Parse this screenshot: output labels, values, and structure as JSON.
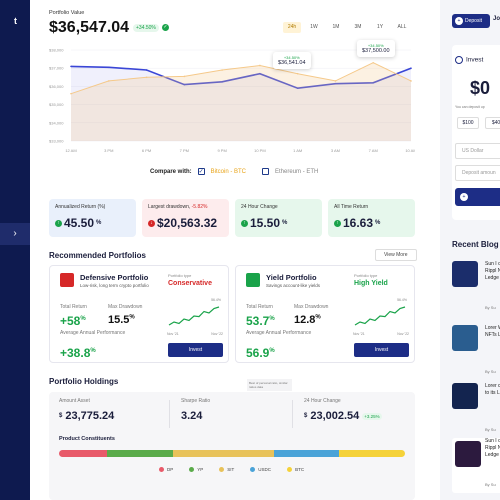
{
  "sidebar": {
    "logo": "t",
    "expand_icon": "chevron-right-icon",
    "expand_glyph": "›"
  },
  "portfolio": {
    "label": "Portfolio Value",
    "value": "$36,547.04",
    "change": "+34.50%",
    "check_glyph": "✓",
    "ranges": [
      "24h",
      "1W",
      "1M",
      "3M",
      "1Y",
      "ALL"
    ],
    "active_range": "24h"
  },
  "chart_data": {
    "type": "line",
    "x": [
      "12 AM",
      "3 PM",
      "6 PM",
      "7 PM",
      "9 PM",
      "10 PM",
      "1 AM",
      "3 AM",
      "7 AM",
      "10 AM"
    ],
    "yticks": [
      "$38,000",
      "$37,000",
      "$36,000",
      "$35,000",
      "$34,000",
      "$33,000"
    ],
    "ylim": [
      33000,
      38000
    ],
    "series": [
      {
        "name": "Portfolio",
        "color": "#3a46d6",
        "values": [
          37100,
          37050,
          36900,
          36100,
          36250,
          36700,
          35900,
          36150,
          36200,
          37000
        ]
      },
      {
        "name": "Bitcoin - BTC",
        "color": "#f5c98a",
        "values": [
          35600,
          36300,
          36500,
          36550,
          36900,
          37150,
          36700,
          36300,
          37300,
          36300
        ]
      }
    ],
    "tooltips": [
      {
        "top": "+34.50%",
        "value": "$36,541.04"
      },
      {
        "top": "+34.50%",
        "value": "$37,500.00"
      }
    ]
  },
  "compare": {
    "title": "Compare with:",
    "btc": "Bitcoin - BTC",
    "eth": "Ethereum - ETH",
    "check_glyph": "✓"
  },
  "stats": [
    {
      "label": "Annualized Return (%)",
      "value": "45.50",
      "unit": "%",
      "sign": "↑"
    },
    {
      "label": "Largest drawdown,",
      "label_extra": " -5.82%",
      "value": "$20,563.32",
      "sign": "↓"
    },
    {
      "label": "24 Hour Change",
      "value": "15.50",
      "unit": "%",
      "sign": "↑"
    },
    {
      "label": "All Time Return",
      "value": "16.63",
      "unit": "%",
      "sign": "↑"
    }
  ],
  "recommended": {
    "title": "Recommended Portfolios",
    "view_more": "View More",
    "cards": [
      {
        "name": "Defensive Portfolio",
        "sub": "Low-risk, long term crypto portfolio",
        "type_label": "Portfolio type",
        "type_value": "Conservative",
        "type_color": "#d62828",
        "total_return_label": "Total Return",
        "total_return": "+58",
        "max_dd_label": "Max Drawdown",
        "max_dd": "15.5",
        "avg_label": "Average Annual Performance",
        "avg": "+38.8",
        "invest": "Invest",
        "spark_top": "56.4%",
        "spark_start": "Nov '21",
        "spark_end": "Nov '22"
      },
      {
        "name": "Yield Portfolio",
        "sub": "Savings account-like yields",
        "type_label": "Portfolio type",
        "type_value": "High Yield",
        "type_color": "#1aa34a",
        "total_return_label": "Total Return",
        "total_return": "53.7",
        "max_dd_label": "Max Drawdown",
        "max_dd": "12.8",
        "avg_label": "Average Annual Performance",
        "avg": "56.9",
        "invest": "Invest",
        "spark_top": "56.4%",
        "spark_start": "Nov '21",
        "spark_end": "Nov '22"
      }
    ]
  },
  "holdings": {
    "title": "Portfolio Holdings",
    "note": "Best of personal ratio, similar ratios data",
    "amount_label": "Amount Asset",
    "amount_prefix": "$",
    "amount": "23,775.24",
    "sharpe_label": "Sharpe Ratio",
    "sharpe": "3.24",
    "change_label": "24 Hour Change",
    "change_prefix": "$",
    "change": "23,002.54",
    "change_pct": "+3.25%",
    "constituents_title": "Product Constituents",
    "constituents": [
      {
        "name": "DP",
        "color": "#e85a6a",
        "share": 0.14
      },
      {
        "name": "YP",
        "color": "#5aab4a",
        "share": 0.19
      },
      {
        "name": "SIT",
        "color": "#e8c25a",
        "share": 0.29
      },
      {
        "name": "USDC",
        "color": "#4aa3d8",
        "share": 0.19
      },
      {
        "name": "BTC",
        "color": "#f5d23a",
        "share": 0.19
      }
    ]
  },
  "right": {
    "deposit": "Deposit",
    "user": "Jo",
    "invest_title": "Invest",
    "big_value": "$0",
    "deposit_note": "You can deposit up",
    "chips": [
      "$100",
      "$40"
    ],
    "currency_placeholder": "US Dollar",
    "deposit_placeholder": "Deposit amoun",
    "blog_title": "Recent Blog",
    "blog_items": [
      {
        "text": "Sun I comp Rippl NFTs Ledge",
        "by": "By Su"
      },
      {
        "text": "Lorer With NFTs Ledge",
        "by": "By Su"
      },
      {
        "text": "Lorer comp to its Ledge",
        "by": "By Su"
      },
      {
        "text": "Sun I comp Rippl NFTs Ledge",
        "by": "By Su"
      }
    ]
  }
}
